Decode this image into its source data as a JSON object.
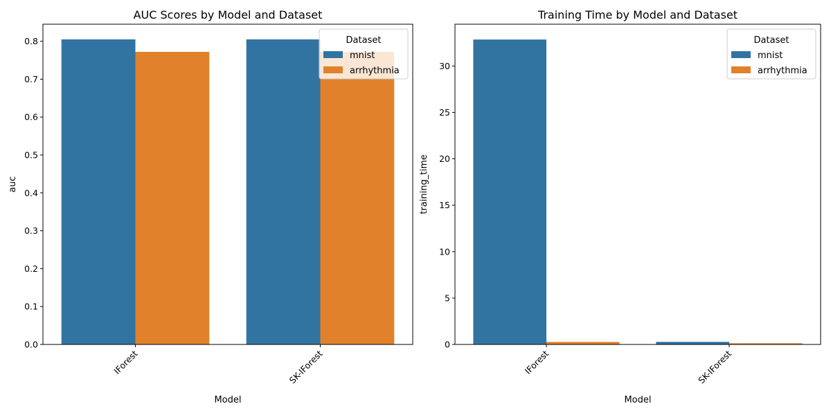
{
  "colors": {
    "mnist": "#3274a1",
    "arrhythmia": "#e1812c"
  },
  "chart_data": [
    {
      "type": "bar",
      "title": "AUC Scores by Model and Dataset",
      "xlabel": "Model",
      "ylabel": "auc",
      "categories": [
        "IForest",
        "SK-IForest"
      ],
      "series": [
        {
          "name": "mnist",
          "values": [
            0.805,
            0.805
          ]
        },
        {
          "name": "arrhythmia",
          "values": [
            0.772,
            0.772
          ]
        }
      ],
      "ylim": [
        0,
        0.845
      ],
      "yticks": [
        0.0,
        0.1,
        0.2,
        0.3,
        0.4,
        0.5,
        0.6,
        0.7,
        0.8
      ],
      "ytick_labels": [
        "0.0",
        "0.1",
        "0.2",
        "0.3",
        "0.4",
        "0.5",
        "0.6",
        "0.7",
        "0.8"
      ],
      "legend": {
        "title": "Dataset",
        "placement": "top-right"
      },
      "grid": false
    },
    {
      "type": "bar",
      "title": "Training Time by Model and Dataset",
      "xlabel": "Model",
      "ylabel": "training_time",
      "categories": [
        "IForest",
        "SK-IForest"
      ],
      "series": [
        {
          "name": "mnist",
          "values": [
            32.85,
            0.28
          ]
        },
        {
          "name": "arrhythmia",
          "values": [
            0.27,
            0.13
          ]
        }
      ],
      "ylim": [
        0,
        34.5
      ],
      "yticks": [
        0,
        5,
        10,
        15,
        20,
        25,
        30
      ],
      "ytick_labels": [
        "0",
        "5",
        "10",
        "15",
        "20",
        "25",
        "30"
      ],
      "legend": {
        "title": "Dataset",
        "placement": "top-right"
      },
      "grid": false
    }
  ]
}
